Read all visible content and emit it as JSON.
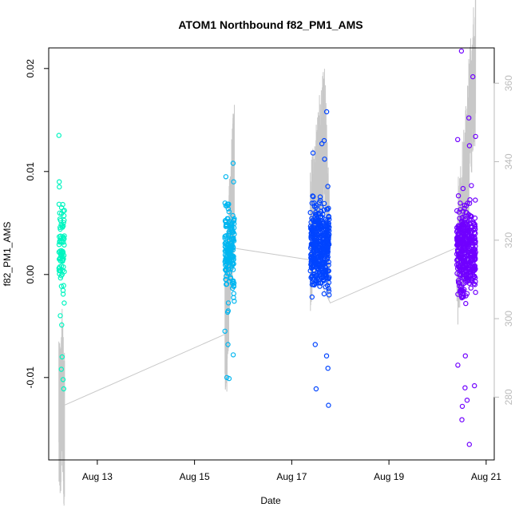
{
  "chart_data": {
    "type": "scatter",
    "title": "ATOM1 Northbound f82_PM1_AMS",
    "xlabel": "Date",
    "ylabel": "f82_PM1_AMS",
    "x_ticks": [
      "Aug 13",
      "Aug 15",
      "Aug 17",
      "Aug 19",
      "Aug 21"
    ],
    "xlim": [
      "Aug 12 00:00",
      "Aug 21 04:00"
    ],
    "ylim": [
      -0.018,
      0.022
    ],
    "y_ticks": [
      -0.01,
      0.0,
      0.01,
      0.02
    ],
    "y_tick_labels": [
      "-0.01",
      "0.00",
      "0.01",
      "0.02"
    ],
    "y2_ticks": [
      280,
      300,
      320,
      340,
      360
    ],
    "y2_tick_labels": [
      "280",
      "300",
      "320",
      "340",
      "360"
    ],
    "y2lim": [
      264,
      369
    ],
    "y2_color": "#bbbbbb",
    "grid": false,
    "legend": "none",
    "series": [
      {
        "color": "#00f5c0",
        "date": "Aug 12",
        "time_range": [
          "05:00",
          "07:50"
        ],
        "y_range": [
          -0.012,
          0.0135
        ],
        "count": 85,
        "y_highlights": [
          0.0135,
          0.009,
          0.0085,
          -0.008,
          -0.0092,
          -0.0102,
          -0.0111,
          -0.0049,
          0.0068,
          -0.004
        ],
        "altitude_path": [
          [
            0.0,
            279
          ],
          [
            0.3,
            272
          ],
          [
            0.55,
            286
          ],
          [
            0.9,
            270
          ],
          [
            1.0,
            275
          ]
        ]
      },
      {
        "color": "#00b6f0",
        "date": "Aug 15",
        "time_range": [
          "15:00",
          "19:40"
        ],
        "y_range": [
          -0.0102,
          0.0108
        ],
        "count": 170,
        "y_highlights": [
          0.0108,
          -0.01,
          -0.0101,
          -0.0078,
          -0.0068,
          0.0095,
          -0.0055,
          0.009
        ],
        "altitude_path": [
          [
            0.0,
            296
          ],
          [
            0.25,
            302
          ],
          [
            0.55,
            320
          ],
          [
            0.8,
            330
          ],
          [
            1.0,
            337
          ]
        ]
      },
      {
        "color": "#0044ff",
        "date": "Aug 17",
        "time_range": [
          "09:10",
          "18:30"
        ],
        "y_range": [
          -0.0127,
          0.0158
        ],
        "count": 420,
        "y_highlights": [
          0.0158,
          0.013,
          0.0127,
          -0.0127,
          -0.0111,
          -0.0091,
          -0.0079,
          -0.0068,
          0.0118,
          0.0112
        ],
        "altitude_path": [
          [
            0.0,
            321
          ],
          [
            0.4,
            335
          ],
          [
            0.75,
            345
          ],
          [
            1.0,
            318
          ]
        ]
      },
      {
        "color": "#7000ff",
        "date": "Aug 20",
        "time_range": [
          "09:30",
          "18:50"
        ],
        "y_range": [
          -0.0165,
          0.0217
        ],
        "count": 420,
        "y_highlights": [
          0.0217,
          0.0192,
          0.0152,
          0.0134,
          0.0131,
          0.0125,
          -0.0165,
          -0.0141,
          -0.0128,
          -0.0122,
          -0.011,
          -0.0108,
          -0.0088,
          -0.0079
        ],
        "altitude_path": [
          [
            0.0,
            314
          ],
          [
            0.4,
            330
          ],
          [
            0.75,
            355
          ],
          [
            1.0,
            365
          ]
        ]
      }
    ],
    "transit_line": [
      {
        "date": "Aug 12",
        "time": "08:00",
        "y2": 278
      },
      {
        "date": "Aug 15",
        "time": "15:00",
        "y2": 296
      },
      {
        "date": "Aug 15",
        "time": "19:00",
        "y2": 318
      },
      {
        "date": "Aug 17",
        "time": "09:00",
        "y2": 315
      },
      {
        "date": "Aug 17",
        "time": "19:00",
        "y2": 304
      },
      {
        "date": "Aug 20",
        "time": "09:00",
        "y2": 318
      }
    ]
  }
}
